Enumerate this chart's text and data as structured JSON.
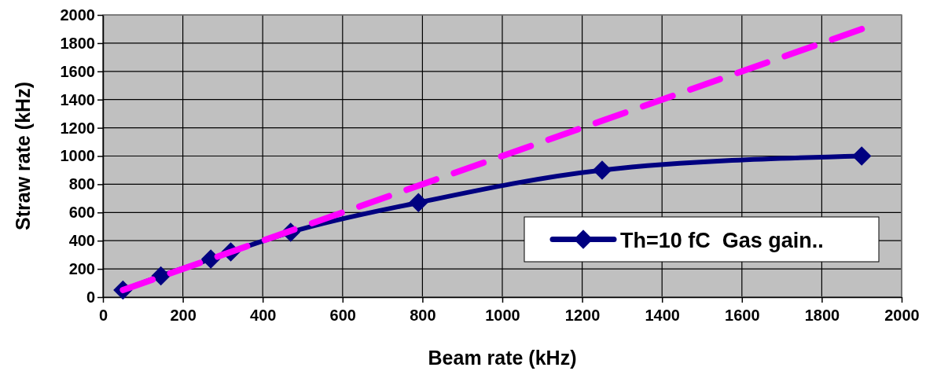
{
  "chart_data": {
    "type": "line",
    "xlabel": "Beam rate (kHz)",
    "ylabel": "Straw rate (kHz)",
    "xlim": [
      0,
      2000
    ],
    "xticks": [
      0,
      200,
      400,
      600,
      800,
      1000,
      1200,
      1400,
      1600,
      1800,
      2000
    ],
    "ylim": [
      0,
      2000
    ],
    "yticks": [
      0,
      200,
      400,
      600,
      800,
      1000,
      1200,
      1400,
      1600,
      1800,
      2000
    ],
    "grid": true,
    "legend": "bottom right",
    "series": [
      {
        "name": "Th=10 fC  Gas gain..",
        "color": "#000080",
        "marker": "diamond",
        "line_style": "solid",
        "x": [
          50,
          145,
          270,
          320,
          470,
          790,
          1250,
          1900
        ],
        "values": [
          50,
          150,
          270,
          320,
          460,
          670,
          900,
          1000
        ]
      },
      {
        "color": "#ff00ff",
        "marker": "none",
        "line_style": "dashed",
        "x": [
          50,
          1900
        ],
        "values": [
          50,
          1900
        ]
      }
    ]
  }
}
